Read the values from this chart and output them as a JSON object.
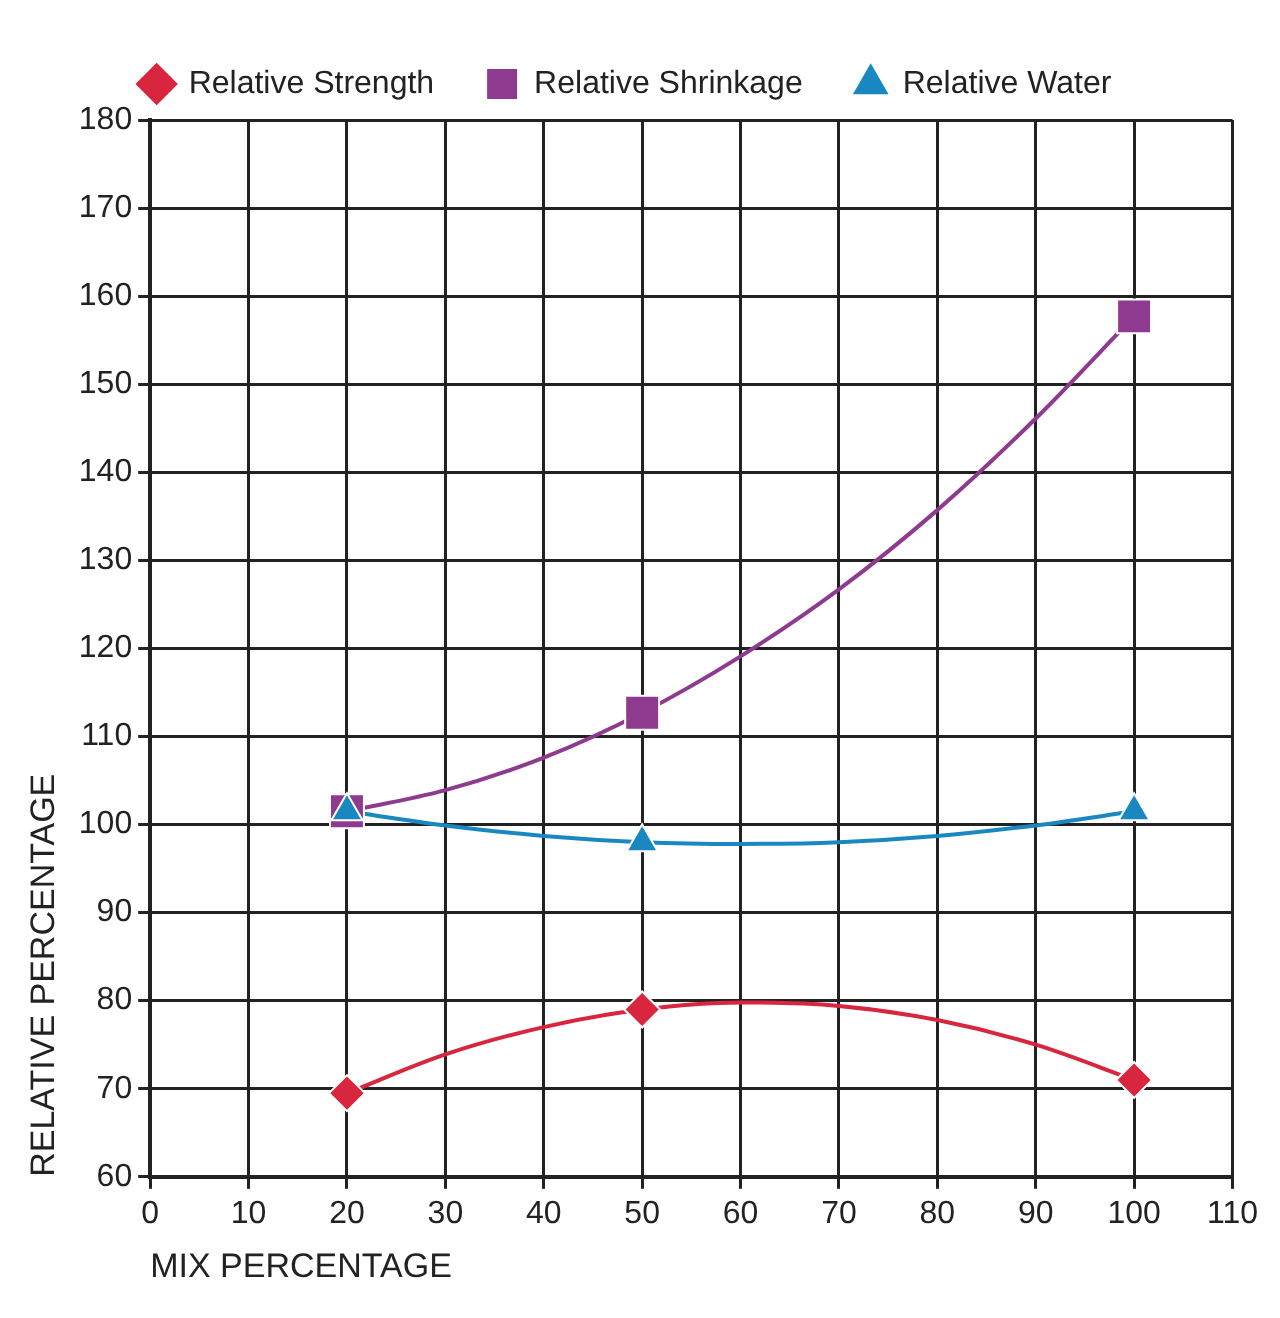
{
  "chart_data": {
    "type": "scatter",
    "xlabel": "MIX PERCENTAGE",
    "ylabel": "RELATIVE PERCENTAGE",
    "xlim": [
      0,
      110
    ],
    "xticks": [
      0,
      10,
      20,
      30,
      40,
      50,
      60,
      70,
      80,
      90,
      100,
      110
    ],
    "ylim": [
      60,
      180
    ],
    "yticks": [
      60,
      70,
      80,
      90,
      100,
      110,
      120,
      130,
      140,
      150,
      160,
      170,
      180
    ],
    "grid": true,
    "legend": "top",
    "x": [
      20,
      50,
      100
    ],
    "series": [
      {
        "name": "Relative Strength",
        "type": "scatter",
        "marker": "diamond",
        "color": "#d7263d",
        "values": [
          69.5,
          79,
          71
        ]
      },
      {
        "name": "Relative Shrinkage",
        "type": "scatter",
        "marker": "square",
        "color": "#8e3a8e",
        "values": [
          101.5,
          112.7,
          157.7
        ]
      },
      {
        "name": "Relative Water",
        "type": "scatter",
        "marker": "triangle",
        "color": "#1a88c0",
        "values": [
          101.5,
          98,
          101.5
        ]
      },
      {
        "type": "line",
        "color": "#d7263d",
        "x": [
          20,
          30,
          40,
          50,
          60,
          70,
          80,
          90,
          100
        ],
        "values": [
          69.5,
          73.9,
          77.0,
          79,
          79.8,
          79.4,
          77.8,
          75.0,
          71
        ]
      },
      {
        "type": "line",
        "color": "#8e3a8e",
        "x": [
          20,
          30,
          40,
          50,
          60,
          70,
          80,
          90,
          100
        ],
        "values": [
          101.5,
          103.9,
          107.6,
          112.7,
          119.1,
          126.7,
          135.7,
          146.1,
          157.7
        ]
      },
      {
        "type": "line",
        "color": "#1a88c0",
        "x": [
          20,
          30,
          40,
          50,
          60,
          70,
          80,
          90,
          100
        ],
        "values": [
          101.5,
          99.9,
          98.7,
          98,
          97.8,
          98.0,
          98.7,
          99.9,
          101.5
        ]
      }
    ]
  }
}
